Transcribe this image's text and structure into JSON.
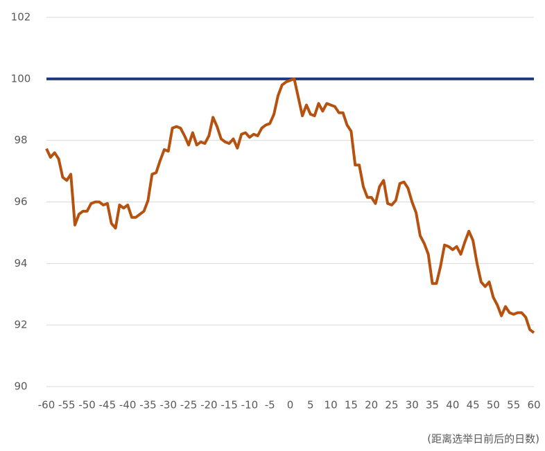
{
  "chart_data": {
    "type": "line",
    "x_label": "(距离选举日前后的日数)",
    "x": [
      -60,
      -59,
      -58,
      -57,
      -56,
      -55,
      -54,
      -53,
      -52,
      -51,
      -50,
      -49,
      -48,
      -47,
      -46,
      -45,
      -44,
      -43,
      -42,
      -41,
      -40,
      -39,
      -38,
      -37,
      -36,
      -35,
      -34,
      -33,
      -32,
      -31,
      -30,
      -29,
      -28,
      -27,
      -26,
      -25,
      -24,
      -23,
      -22,
      -21,
      -20,
      -19,
      -18,
      -17,
      -16,
      -15,
      -14,
      -13,
      -12,
      -11,
      -10,
      -9,
      -8,
      -7,
      -6,
      -5,
      -4,
      -3,
      -2,
      -1,
      0,
      1,
      2,
      3,
      4,
      5,
      6,
      7,
      8,
      9,
      10,
      11,
      12,
      13,
      14,
      15,
      16,
      17,
      18,
      19,
      20,
      21,
      22,
      23,
      24,
      25,
      26,
      27,
      28,
      29,
      30,
      31,
      32,
      33,
      34,
      35,
      36,
      37,
      38,
      39,
      40,
      41,
      42,
      43,
      44,
      45,
      46,
      47,
      48,
      49,
      50,
      51,
      52,
      53,
      54,
      55,
      56,
      57,
      58,
      59,
      60
    ],
    "series": [
      {
        "color": "#b5520f",
        "values": [
          97.73,
          97.45,
          97.6,
          97.4,
          96.8,
          96.7,
          96.9,
          95.25,
          95.6,
          95.7,
          95.7,
          95.95,
          96.0,
          96.0,
          95.9,
          95.95,
          95.3,
          95.15,
          95.9,
          95.8,
          95.9,
          95.5,
          95.5,
          95.6,
          95.7,
          96.05,
          96.9,
          96.95,
          97.35,
          97.7,
          97.65,
          98.4,
          98.45,
          98.4,
          98.15,
          97.85,
          98.25,
          97.85,
          97.95,
          97.9,
          98.15,
          98.75,
          98.45,
          98.05,
          97.95,
          97.9,
          98.05,
          97.75,
          98.2,
          98.25,
          98.1,
          98.2,
          98.15,
          98.4,
          98.5,
          98.55,
          98.85,
          99.45,
          99.8,
          99.9,
          99.95,
          100,
          99.4,
          98.8,
          99.15,
          98.85,
          98.8,
          99.2,
          98.95,
          99.2,
          99.15,
          99.1,
          98.9,
          98.9,
          98.5,
          98.3,
          97.2,
          97.2,
          96.5,
          96.15,
          96.15,
          95.95,
          96.5,
          96.7,
          95.95,
          95.9,
          96.05,
          96.6,
          96.65,
          96.45,
          96.0,
          95.65,
          94.9,
          94.65,
          94.3,
          93.35,
          93.35,
          93.9,
          94.6,
          94.55,
          94.45,
          94.55,
          94.3,
          94.7,
          95.05,
          94.75,
          94.0,
          93.4,
          93.25,
          93.4,
          92.9,
          92.65,
          92.3,
          92.6,
          92.4,
          92.35,
          92.4,
          92.4,
          92.25,
          91.85,
          91.75
        ]
      }
    ],
    "reference_line": {
      "value": 100,
      "color": "#1f3a7a"
    },
    "xlim": [
      -60,
      60
    ],
    "xticks": [
      -60,
      -55,
      -50,
      -45,
      -40,
      -35,
      -30,
      -25,
      -20,
      -15,
      -10,
      -5,
      0,
      5,
      10,
      15,
      20,
      25,
      30,
      35,
      40,
      45,
      50,
      55,
      60
    ],
    "ylim": [
      90,
      102
    ],
    "yticks": [
      90,
      92,
      94,
      96,
      98,
      100,
      102
    ],
    "grid": true
  }
}
